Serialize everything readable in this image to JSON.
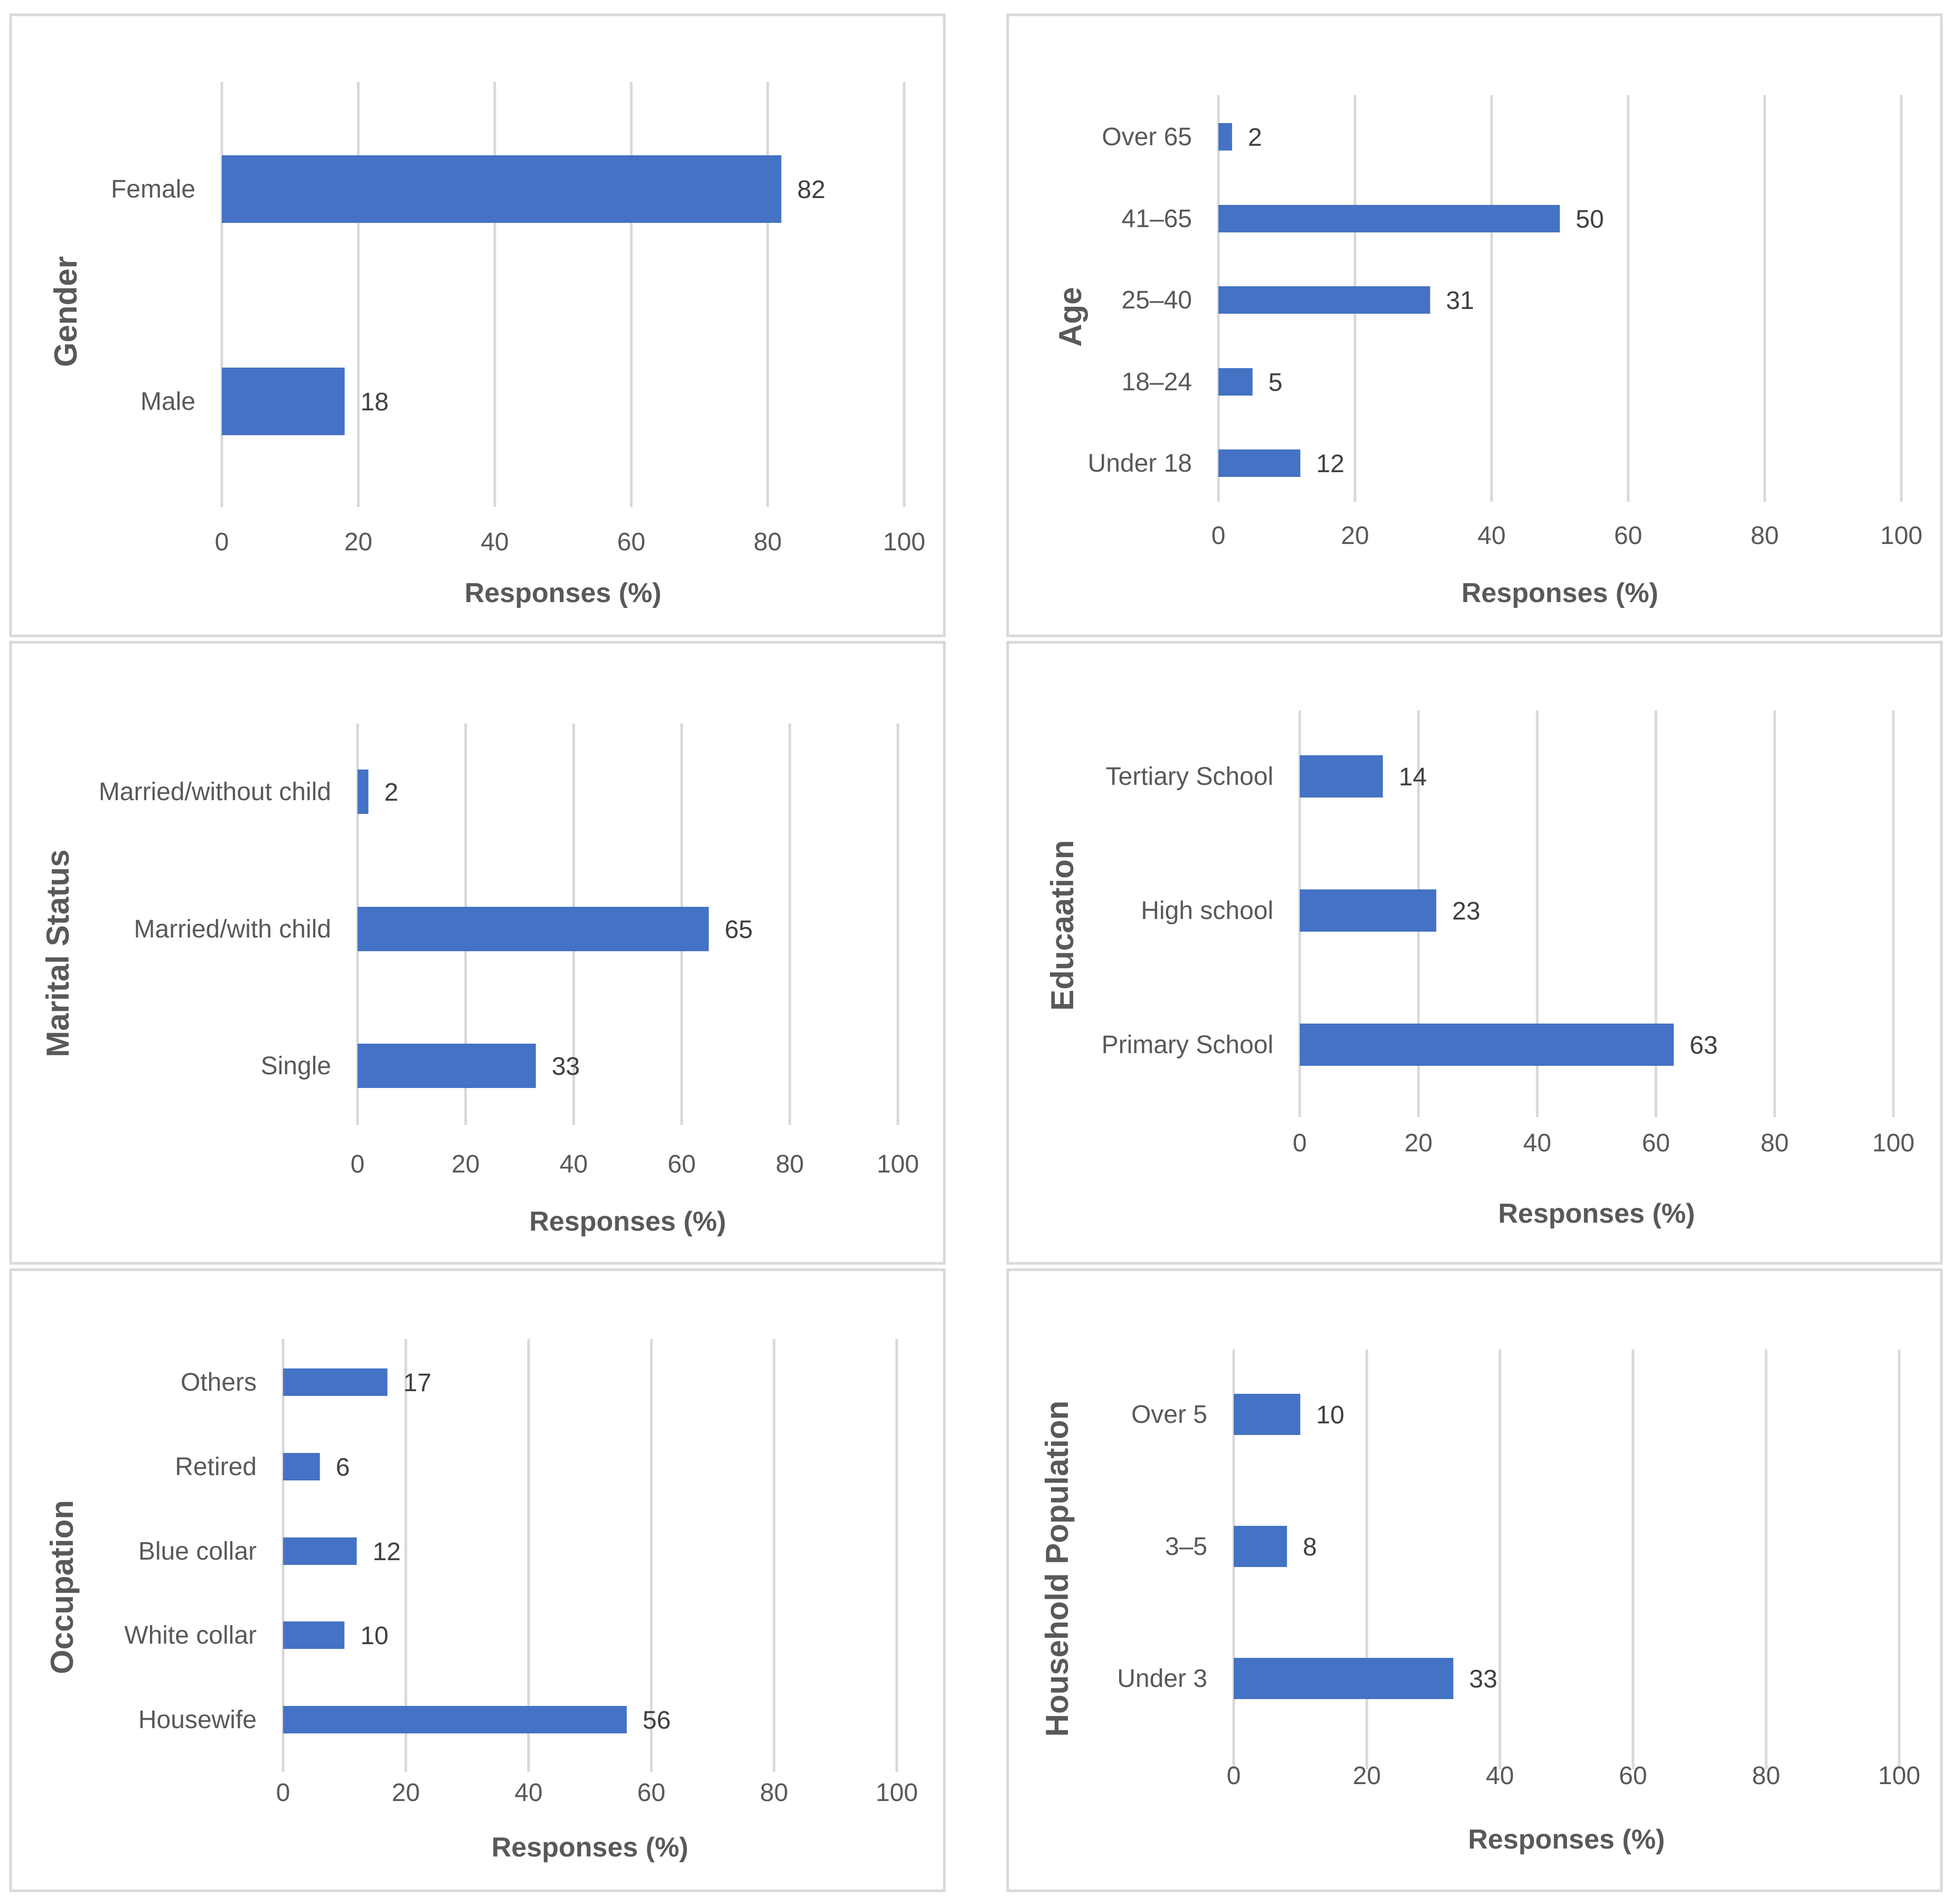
{
  "chart_data": [
    {
      "type": "bar",
      "orientation": "horizontal",
      "category_axis_title": "Gender",
      "xlabel": "Responses (%)",
      "xlim": [
        0,
        100
      ],
      "x_ticks": [
        "0",
        "20",
        "40",
        "60",
        "80",
        "100"
      ],
      "grid": "vertical",
      "categories": [
        "Male",
        "Female"
      ],
      "values": [
        18,
        82
      ],
      "value_labels": [
        "18",
        "82"
      ],
      "color": "#4472c4"
    },
    {
      "type": "bar",
      "orientation": "horizontal",
      "category_axis_title": "Age",
      "xlabel": "Responses (%)",
      "xlim": [
        0,
        100
      ],
      "x_ticks": [
        "0",
        "20",
        "40",
        "60",
        "80",
        "100"
      ],
      "grid": "vertical",
      "categories": [
        "Under 18",
        "18–24",
        "25–40",
        "41–65",
        "Over 65"
      ],
      "values": [
        12,
        5,
        31,
        50,
        2
      ],
      "value_labels": [
        "12",
        "5",
        "31",
        "50",
        "2"
      ],
      "color": "#4472c4"
    },
    {
      "type": "bar",
      "orientation": "horizontal",
      "category_axis_title": "Marital Status",
      "xlabel": "Responses (%)",
      "xlim": [
        0,
        100
      ],
      "x_ticks": [
        "0",
        "20",
        "40",
        "60",
        "80",
        "100"
      ],
      "grid": "vertical",
      "categories": [
        "Single",
        "Married/with child",
        "Married/without child"
      ],
      "values": [
        33,
        65,
        2
      ],
      "value_labels": [
        "33",
        "65",
        "2"
      ],
      "color": "#4472c4"
    },
    {
      "type": "bar",
      "orientation": "horizontal",
      "category_axis_title": "Educaation",
      "xlabel": "Responses (%)",
      "xlim": [
        0,
        100
      ],
      "x_ticks": [
        "0",
        "20",
        "40",
        "60",
        "80",
        "100"
      ],
      "grid": "vertical",
      "categories": [
        "Primary School",
        "High school",
        "Tertiary School"
      ],
      "values": [
        63,
        23,
        14
      ],
      "value_labels": [
        "63",
        "23",
        "14"
      ],
      "color": "#4472c4"
    },
    {
      "type": "bar",
      "orientation": "horizontal",
      "category_axis_title": "Occupation",
      "xlabel": "Responses (%)",
      "xlim": [
        0,
        100
      ],
      "x_ticks": [
        "0",
        "20",
        "40",
        "60",
        "80",
        "100"
      ],
      "grid": "vertical",
      "categories": [
        "Housewife",
        "White collar",
        "Blue collar",
        "Retired",
        "Others"
      ],
      "values": [
        56,
        10,
        12,
        6,
        17
      ],
      "value_labels": [
        "56",
        "10",
        "12",
        "6",
        "17"
      ],
      "color": "#4472c4"
    },
    {
      "type": "bar",
      "orientation": "horizontal",
      "category_axis_title": "Household Population",
      "xlabel": "Responses (%)",
      "xlim": [
        0,
        100
      ],
      "x_ticks": [
        "0",
        "20",
        "40",
        "60",
        "80",
        "100"
      ],
      "grid": "vertical",
      "categories": [
        "Under 3",
        "3–5",
        "Over 5"
      ],
      "values": [
        33,
        8,
        10
      ],
      "value_labels": [
        "33",
        "8",
        "10"
      ],
      "color": "#4472c4"
    }
  ]
}
